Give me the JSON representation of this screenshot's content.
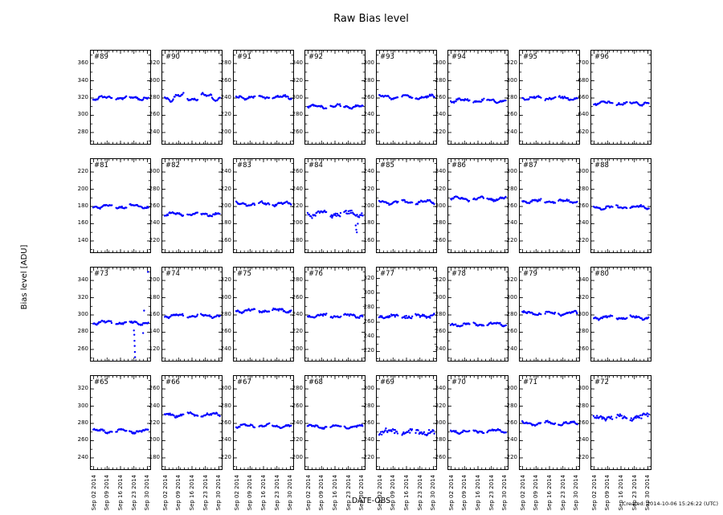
{
  "note": {
    "created": "Created: 2014-10-06 15:26:22 (UTC)"
  },
  "chart_data": {
    "type": "scatter",
    "title": "Raw Bias level",
    "xlabel": "DATE-OBS",
    "ylabel": "Bias level [ADU]",
    "marker_color": "#0000ff",
    "axis_color": "#000000",
    "x_tick_labels": [
      "Sep 02 2014",
      "Sep 09 2014",
      "Sep 16 2014",
      "Sep 23 2014",
      "Sep 30 2014"
    ],
    "x_range_days": [
      0,
      31
    ],
    "sampling_day_ranges": [
      [
        0.8,
        10.6
      ],
      [
        12.7,
        18.3
      ],
      [
        19.8,
        29.6
      ]
    ],
    "grid": "off",
    "legend": "none",
    "layout": {
      "rows": 4,
      "cols": 8
    },
    "panels": [
      {
        "id": "#89",
        "yticks": [
          360,
          340,
          320,
          300,
          280
        ],
        "mean": 320
      },
      {
        "id": "#90",
        "yticks": [
          320,
          300,
          280,
          260,
          240
        ],
        "mean": 281,
        "amp": 3.6
      },
      {
        "id": "#91",
        "yticks": [
          280,
          260,
          240,
          220,
          200
        ],
        "mean": 241
      },
      {
        "id": "#92",
        "yticks": [
          340,
          320,
          300,
          280,
          260
        ],
        "mean": 290
      },
      {
        "id": "#93",
        "yticks": [
          300,
          280,
          260,
          240,
          220
        ],
        "mean": 261
      },
      {
        "id": "#94",
        "yticks": [
          300,
          280,
          260,
          240,
          220
        ],
        "mean": 257
      },
      {
        "id": "#95",
        "yticks": [
          320,
          300,
          280,
          260,
          240
        ],
        "mean": 280
      },
      {
        "id": "#96",
        "yticks": [
          700,
          680,
          660,
          640,
          620
        ],
        "mean": 654
      },
      {
        "id": "#81",
        "yticks": [
          220,
          200,
          180,
          160,
          140
        ],
        "mean": 180
      },
      {
        "id": "#82",
        "yticks": [
          300,
          280,
          260,
          240,
          220
        ],
        "mean": 251
      },
      {
        "id": "#83",
        "yticks": [
          240,
          220,
          200,
          180,
          160
        ],
        "mean": 203
      },
      {
        "id": "#84",
        "yticks": [
          260,
          240,
          220,
          200,
          180
        ],
        "mean": 212,
        "noise": 2.2,
        "amp": 2.5,
        "outliers": [
          [
            25.8,
            198
          ],
          [
            26.1,
            193
          ],
          [
            26.4,
            190
          ],
          [
            26.9,
            200
          ],
          [
            13.5,
            207
          ]
        ]
      },
      {
        "id": "#85",
        "yticks": [
          240,
          220,
          200,
          180,
          160
        ],
        "mean": 205
      },
      {
        "id": "#86",
        "yticks": [
          340,
          320,
          300,
          280,
          260
        ],
        "mean": 309
      },
      {
        "id": "#87",
        "yticks": [
          300,
          280,
          260,
          240,
          220
        ],
        "mean": 266
      },
      {
        "id": "#88",
        "yticks": [
          300,
          280,
          260,
          240,
          220
        ],
        "mean": 259
      },
      {
        "id": "#73",
        "yticks": [
          340,
          320,
          300,
          280,
          260
        ],
        "mean": 291,
        "outliers": [
          [
            11.2,
            246
          ],
          [
            22.0,
            282
          ],
          [
            22.2,
            277
          ],
          [
            22.3,
            270
          ],
          [
            22.4,
            264
          ],
          [
            22.5,
            257
          ],
          [
            22.6,
            251
          ],
          [
            22.7,
            246
          ],
          [
            26.8,
            279
          ],
          [
            27.3,
            305
          ],
          [
            29.3,
            350
          ]
        ]
      },
      {
        "id": "#74",
        "yticks": [
          200,
          180,
          160,
          140,
          120
        ],
        "mean": 159
      },
      {
        "id": "#75",
        "yticks": [
          320,
          300,
          280,
          260,
          240
        ],
        "mean": 285
      },
      {
        "id": "#76",
        "yticks": [
          280,
          260,
          240,
          220,
          200
        ],
        "mean": 239
      },
      {
        "id": "#77",
        "yticks": [
          320,
          300,
          280,
          260,
          240,
          220
        ],
        "mean": 268,
        "noise": 1.8,
        "trend": 4
      },
      {
        "id": "#78",
        "yticks": [
          320,
          300,
          280,
          260,
          240
        ],
        "mean": 269
      },
      {
        "id": "#79",
        "yticks": [
          320,
          300,
          280,
          260,
          240
        ],
        "mean": 282
      },
      {
        "id": "#80",
        "yticks": [
          340,
          320,
          300,
          280,
          260
        ],
        "mean": 297
      },
      {
        "id": "#65",
        "yticks": [
          320,
          300,
          280,
          260,
          240
        ],
        "mean": 271
      },
      {
        "id": "#66",
        "yticks": [
          260,
          240,
          220,
          200,
          180
        ],
        "mean": 230
      },
      {
        "id": "#67",
        "yticks": [
          300,
          280,
          260,
          240,
          220
        ],
        "mean": 257
      },
      {
        "id": "#68",
        "yticks": [
          280,
          260,
          240,
          220,
          200
        ],
        "mean": 236
      },
      {
        "id": "#69",
        "yticks": [
          300,
          280,
          260,
          240,
          220
        ],
        "mean": 250,
        "noise": 2.6
      },
      {
        "id": "#70",
        "yticks": [
          340,
          320,
          300,
          280,
          260
        ],
        "mean": 291
      },
      {
        "id": "#71",
        "yticks": [
          300,
          280,
          260,
          240,
          220
        ],
        "mean": 260
      },
      {
        "id": "#72",
        "yticks": [
          300,
          280,
          260,
          240,
          220
        ],
        "mean": 267,
        "noise": 1.9,
        "trend": 4
      }
    ]
  }
}
